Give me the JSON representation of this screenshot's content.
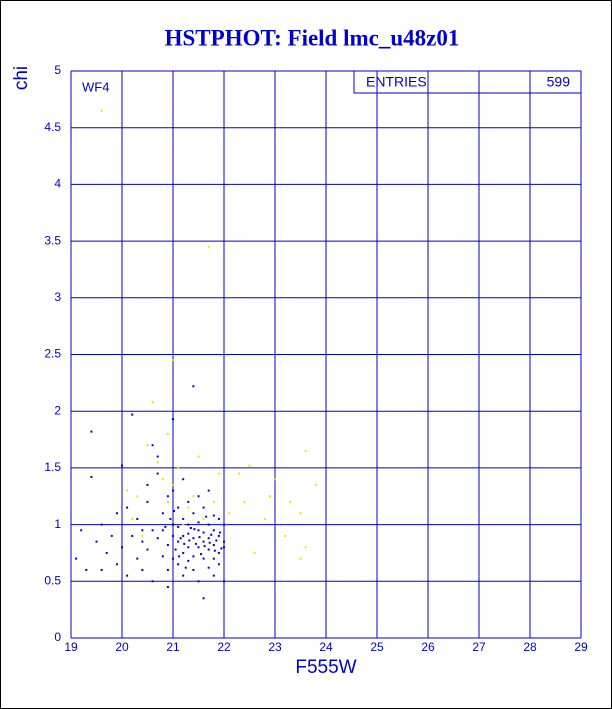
{
  "chart_data": {
    "type": "scatter",
    "title": "HSTPHOT: Field lmc_u48z01",
    "x_label": "F555W",
    "y_label": "chi",
    "annotation": "WF4",
    "stats": {
      "label": "ENTRIES",
      "value": 599
    },
    "xlim": [
      19,
      29
    ],
    "ylim": [
      0,
      5
    ],
    "xticks": [
      19,
      20,
      21,
      22,
      23,
      24,
      25,
      26,
      27,
      28,
      29
    ],
    "yticks": [
      0,
      0.5,
      1,
      1.5,
      2,
      2.5,
      3,
      3.5,
      4,
      4.5,
      5
    ],
    "grid": true,
    "series": [
      {
        "color": "#0000cc",
        "x": [
          19.1,
          19.2,
          19.3,
          19.4,
          19.4,
          19.5,
          19.6,
          19.6,
          19.7,
          19.8,
          19.9,
          19.9,
          20.0,
          20.0,
          20.1,
          20.1,
          20.2,
          20.2,
          20.3,
          20.3,
          20.4,
          20.4,
          20.5,
          20.5,
          20.6,
          20.6,
          20.7,
          20.7,
          20.7,
          20.8,
          20.8,
          20.8,
          20.9,
          20.9,
          20.9,
          20.9,
          21.0,
          21.0,
          21.0,
          21.0,
          21.0,
          21.1,
          21.1,
          21.1,
          21.1,
          21.2,
          21.2,
          21.2,
          21.2,
          21.2,
          21.3,
          21.3,
          21.3,
          21.3,
          21.3,
          21.4,
          21.4,
          21.4,
          21.4,
          21.4,
          21.5,
          21.5,
          21.5,
          21.5,
          21.5,
          21.6,
          21.6,
          21.6,
          21.6,
          21.6,
          21.7,
          21.7,
          21.7,
          21.7,
          21.7,
          21.8,
          21.8,
          21.8,
          21.8,
          21.8,
          21.9,
          21.9,
          21.9,
          21.9,
          22.0,
          22.0,
          22.0,
          22.0,
          20.95,
          21.05,
          21.15,
          21.25,
          21.35,
          21.45,
          21.55,
          21.65,
          21.75,
          21.85,
          21.95,
          20.85,
          21.02,
          21.22,
          21.42,
          21.62,
          21.82,
          21.92,
          21.12,
          21.32,
          21.52,
          21.72,
          20.6,
          20.5,
          20.4
        ],
        "y": [
          0.7,
          0.95,
          0.6,
          1.82,
          1.42,
          0.85,
          1.0,
          0.6,
          0.75,
          0.9,
          1.1,
          0.65,
          1.52,
          0.8,
          0.55,
          1.15,
          0.9,
          1.97,
          0.7,
          1.05,
          0.6,
          0.85,
          1.2,
          0.78,
          0.95,
          0.5,
          1.6,
          0.88,
          1.45,
          0.72,
          1.1,
          0.95,
          0.6,
          1.25,
          0.82,
          0.45,
          1.0,
          0.7,
          0.9,
          1.3,
          1.93,
          0.85,
          0.65,
          1.15,
          0.98,
          0.75,
          1.05,
          0.9,
          0.55,
          1.4,
          0.8,
          1.0,
          0.68,
          1.2,
          0.92,
          0.88,
          0.72,
          1.1,
          2.22,
          0.6,
          0.95,
          0.8,
          1.25,
          0.5,
          1.02,
          0.85,
          0.7,
          1.15,
          0.35,
          0.93,
          0.78,
          1.0,
          0.62,
          1.3,
          0.88,
          0.82,
          0.7,
          1.08,
          0.95,
          0.55,
          0.9,
          0.75,
          1.05,
          0.65,
          0.85,
          0.8,
          0.5,
          1.0,
          1.05,
          0.78,
          0.88,
          0.62,
          0.97,
          0.83,
          0.74,
          1.07,
          0.91,
          0.86,
          0.79,
          0.98,
          1.12,
          0.83,
          0.96,
          0.81,
          0.77,
          0.93,
          0.72,
          0.86,
          0.89,
          0.84,
          1.7,
          1.35,
          0.95
        ]
      },
      {
        "color": "#e6e600",
        "x": [
          20.1,
          20.3,
          20.5,
          20.6,
          20.7,
          20.8,
          20.9,
          21.0,
          21.1,
          21.2,
          21.3,
          21.5,
          21.6,
          21.8,
          21.9,
          22.1,
          22.3,
          22.4,
          22.5,
          22.6,
          22.8,
          22.9,
          23.0,
          23.2,
          23.3,
          23.5,
          23.5,
          23.6,
          23.6,
          23.8,
          20.4,
          20.2,
          21.4,
          19.6,
          21.7,
          21.0,
          20.9
        ],
        "y": [
          1.3,
          1.25,
          1.7,
          2.08,
          1.55,
          1.4,
          1.2,
          1.35,
          1.5,
          1.0,
          1.15,
          1.6,
          1.05,
          1.2,
          1.45,
          1.1,
          1.45,
          1.2,
          1.52,
          0.75,
          1.05,
          1.25,
          1.4,
          0.9,
          1.2,
          0.7,
          1.1,
          0.8,
          1.65,
          1.35,
          0.9,
          1.05,
          1.25,
          4.65,
          3.45,
          2.45,
          1.8
        ]
      }
    ]
  }
}
